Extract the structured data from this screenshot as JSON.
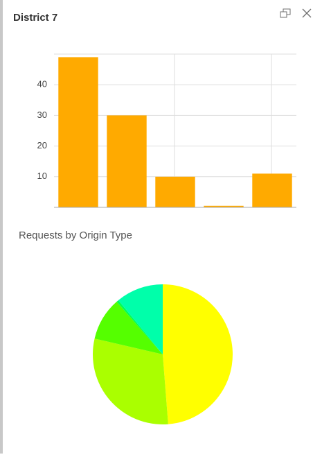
{
  "header": {
    "title": "District 7"
  },
  "chart_data": [
    {
      "type": "bar",
      "categories": [
        null,
        null,
        null,
        null,
        null
      ],
      "values": [
        49,
        30,
        10,
        0.5,
        11
      ],
      "color": "#ffaa00",
      "ylim": [
        0,
        50
      ],
      "yticks": [
        10,
        20,
        30,
        40
      ],
      "grid": true
    },
    {
      "type": "pie",
      "title": "Requests by Origin Type",
      "values": [
        49,
        30,
        10,
        0.5,
        11
      ],
      "colors": [
        "#ffff00",
        "#aaff00",
        "#55ff00",
        "#00ff55",
        "#00ffaa"
      ]
    }
  ]
}
